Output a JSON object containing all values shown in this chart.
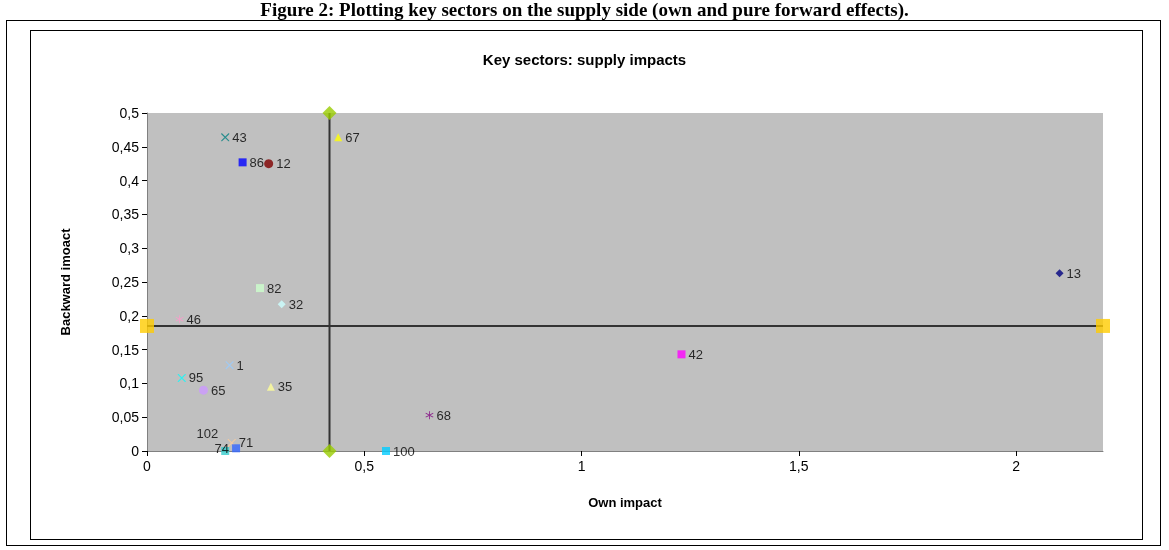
{
  "chart_data": {
    "type": "scatter",
    "title": "Key sectors: supply impacts",
    "xlabel": "Own impact",
    "ylabel": "Backward imoact",
    "annotations": [
      "Figure 2: Plotting key sectors on the supply side (own and pure forward effects)."
    ],
    "xlim": [
      0,
      2.2
    ],
    "xticks": [
      0,
      {
        "value": 0.5,
        "label": "0,5"
      },
      1,
      {
        "value": 1.5,
        "label": "1,5"
      },
      2
    ],
    "ylim": [
      0,
      0.5
    ],
    "yticks": [
      0,
      {
        "value": 0.05,
        "label": "0,05"
      },
      {
        "value": 0.1,
        "label": "0,1"
      },
      {
        "value": 0.15,
        "label": "0,15"
      },
      {
        "value": 0.2,
        "label": "0,2"
      },
      {
        "value": 0.25,
        "label": "0,25"
      },
      {
        "value": 0.3,
        "label": "0,3"
      },
      {
        "value": 0.35,
        "label": "0,35"
      },
      {
        "value": 0.4,
        "label": "0,4"
      },
      {
        "value": 0.45,
        "label": "0,45"
      },
      {
        "value": 0.5,
        "label": "0,5"
      }
    ],
    "grid": false,
    "legend": false,
    "ref_lines": [
      {
        "axis": "x",
        "value": 0.42,
        "color": "#333333"
      },
      {
        "axis": "y",
        "value": 0.185,
        "color": "#333333"
      }
    ],
    "series": [
      {
        "name": "13",
        "color": "#000080",
        "marker": "diamond",
        "x": [
          2.1
        ],
        "values": [
          0.263
        ]
      },
      {
        "name": "42",
        "color": "#ff00ff",
        "marker": "square",
        "x": [
          1.23
        ],
        "values": [
          0.143
        ]
      },
      {
        "name": "67",
        "color": "#ffff00",
        "marker": "triangle",
        "x": [
          0.44
        ],
        "values": [
          0.464
        ]
      },
      {
        "name": "43",
        "color": "#008080",
        "marker": "cross",
        "x": [
          0.18
        ],
        "values": [
          0.464
        ]
      },
      {
        "name": "86",
        "color": "#0000ff",
        "marker": "square",
        "x": [
          0.22
        ],
        "values": [
          0.427
        ]
      },
      {
        "name": "12",
        "color": "#800000",
        "marker": "circle",
        "x": [
          0.28
        ],
        "values": [
          0.425
        ]
      },
      {
        "name": "82",
        "color": "#ccffcc",
        "marker": "square",
        "x": [
          0.26
        ],
        "values": [
          0.241
        ]
      },
      {
        "name": "32",
        "color": "#ccffff",
        "marker": "diamond",
        "x": [
          0.31
        ],
        "values": [
          0.217
        ]
      },
      {
        "name": "46",
        "color": "#ff99cc",
        "marker": "star",
        "x": [
          0.075
        ],
        "values": [
          0.195
        ]
      },
      {
        "name": "1",
        "color": "#99ccff",
        "marker": "cross",
        "x": [
          0.19
        ],
        "values": [
          0.127
        ]
      },
      {
        "name": "95",
        "color": "#00ffff",
        "marker": "cross",
        "x": [
          0.08
        ],
        "values": [
          0.108
        ]
      },
      {
        "name": "65",
        "color": "#cc99ff",
        "marker": "circle",
        "x": [
          0.13
        ],
        "values": [
          0.09
        ]
      },
      {
        "name": "35",
        "color": "#ffff99",
        "marker": "triangle",
        "x": [
          0.285
        ],
        "values": [
          0.095
        ]
      },
      {
        "name": "68",
        "color": "#800080",
        "marker": "star",
        "x": [
          0.65
        ],
        "values": [
          0.053
        ]
      },
      {
        "name": "71",
        "color": "#ffcc99",
        "marker": "cross",
        "x": [
          0.195
        ],
        "values": [
          0.012
        ]
      },
      {
        "name": "74",
        "color": "#3366ff",
        "marker": "square",
        "x": [
          0.205
        ],
        "values": [
          0.004
        ]
      },
      {
        "name": "102",
        "color": "#33cccc",
        "marker": "square",
        "x": [
          0.18
        ],
        "values": [
          0
        ]
      },
      {
        "name": "100",
        "color": "#00ccff",
        "marker": "square",
        "x": [
          0.55
        ],
        "values": [
          0
        ]
      },
      {
        "color": "#99cc00",
        "marker": "diamond",
        "x": [
          0.42,
          0.42
        ],
        "values": [
          0,
          0.5
        ]
      },
      {
        "color": "#ffcc00",
        "marker": "square",
        "x": [
          0,
          2.2
        ],
        "values": [
          0.185,
          0.185
        ]
      }
    ]
  }
}
